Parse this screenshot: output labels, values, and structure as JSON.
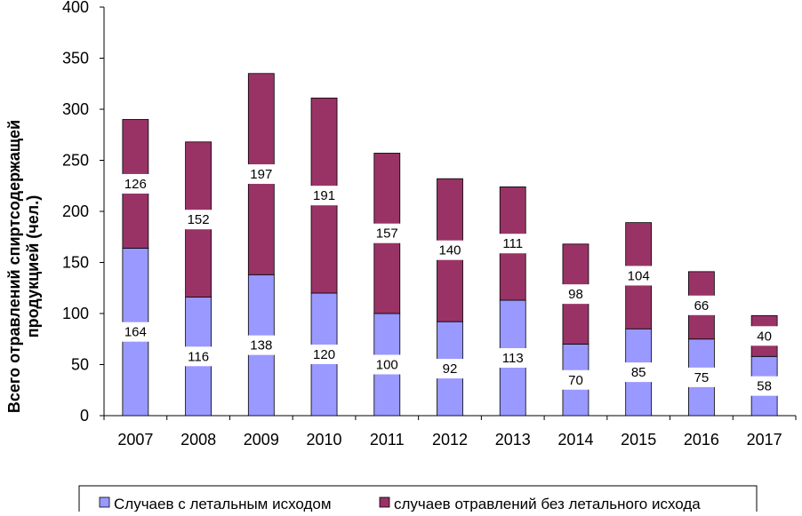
{
  "chart_data": {
    "type": "bar",
    "stacked": true,
    "categories": [
      "2007",
      "2008",
      "2009",
      "2010",
      "2011",
      "2012",
      "2013",
      "2014",
      "2015",
      "2016",
      "2017"
    ],
    "series": [
      {
        "name": "Случаев с летальным исходом",
        "color": "#9999ff",
        "values": [
          164,
          116,
          138,
          120,
          100,
          92,
          113,
          70,
          85,
          75,
          58
        ]
      },
      {
        "name": "случаев отравлений без летального исхода",
        "color": "#993366",
        "values": [
          126,
          152,
          197,
          191,
          157,
          140,
          111,
          98,
          104,
          66,
          40
        ]
      }
    ],
    "title": "",
    "xlabel": "",
    "ylabel_lines": [
      "Всего отравлений спиртсодержащей",
      "продукцией (чел.)"
    ],
    "ylim": [
      0,
      400
    ],
    "yticks": [
      0,
      50,
      100,
      150,
      200,
      250,
      300,
      350,
      400
    ],
    "grid": false,
    "legend_position": "bottom"
  }
}
